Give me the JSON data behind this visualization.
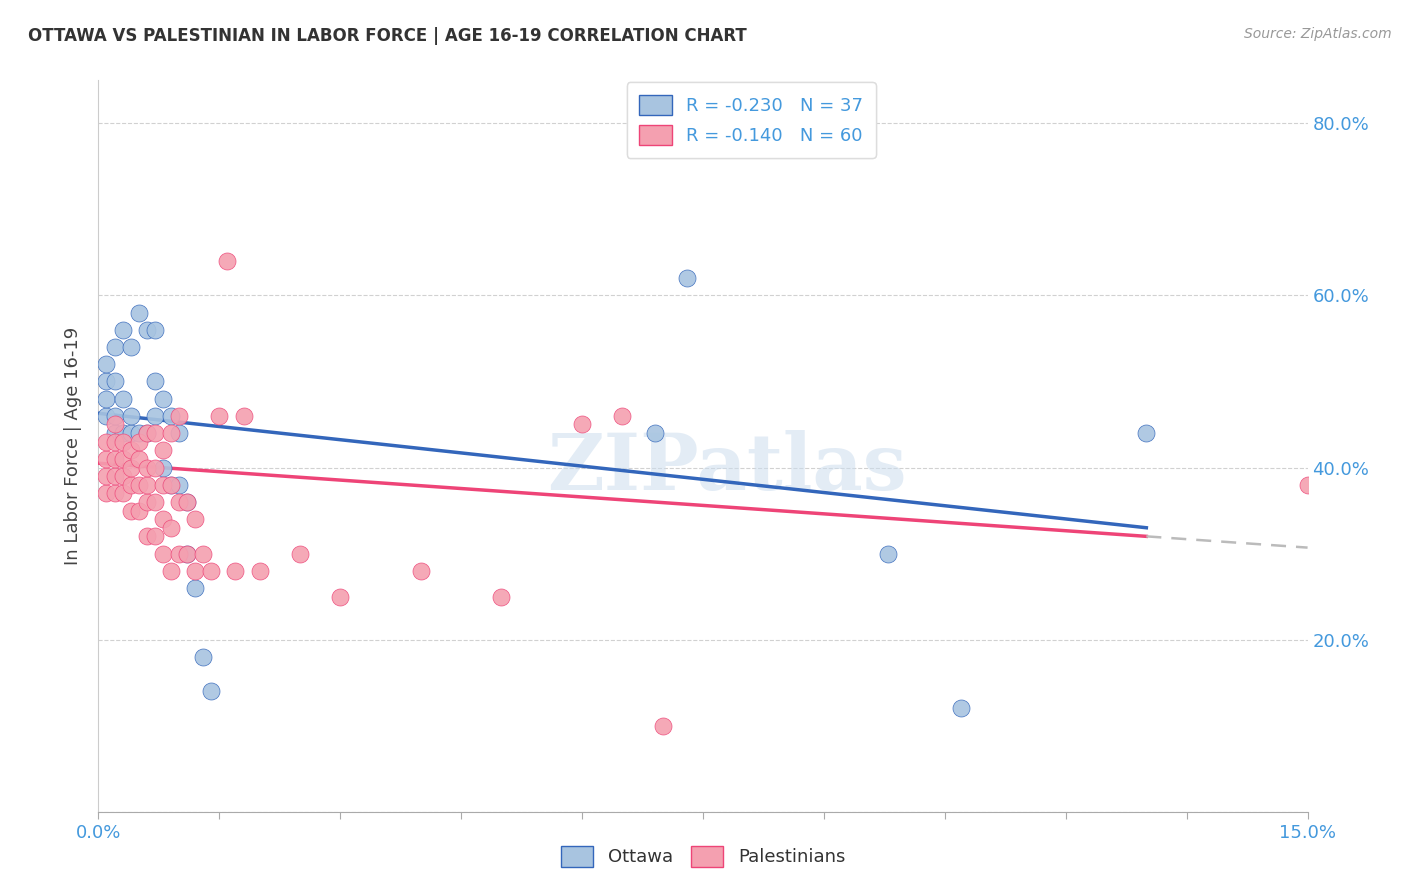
{
  "title": "OTTAWA VS PALESTINIAN IN LABOR FORCE | AGE 16-19 CORRELATION CHART",
  "source": "Source: ZipAtlas.com",
  "xlim": [
    0.0,
    0.15
  ],
  "ylim": [
    0.0,
    0.85
  ],
  "ylabel": "In Labor Force | Age 16-19",
  "watermark": "ZIPatlas",
  "legend_ottawa": "Ottawa",
  "legend_palestinians": "Palestinians",
  "R_ottawa": -0.23,
  "N_ottawa": 37,
  "R_palestinians": -0.14,
  "N_palestinians": 60,
  "ottawa_color": "#A8C4E0",
  "palestinian_color": "#F4A0B0",
  "trend_ottawa_color": "#3366BB",
  "trend_palestinian_color": "#EE4477",
  "tick_label_color": "#4499DD",
  "title_color": "#333333",
  "source_color": "#999999",
  "ottawa_x": [
    0.001,
    0.001,
    0.001,
    0.001,
    0.002,
    0.002,
    0.002,
    0.002,
    0.003,
    0.003,
    0.003,
    0.004,
    0.004,
    0.004,
    0.005,
    0.005,
    0.006,
    0.006,
    0.007,
    0.007,
    0.007,
    0.008,
    0.008,
    0.009,
    0.009,
    0.01,
    0.01,
    0.011,
    0.011,
    0.012,
    0.013,
    0.014,
    0.069,
    0.073,
    0.098,
    0.107,
    0.13
  ],
  "ottawa_y": [
    0.46,
    0.48,
    0.5,
    0.52,
    0.44,
    0.46,
    0.5,
    0.54,
    0.44,
    0.48,
    0.56,
    0.44,
    0.46,
    0.54,
    0.44,
    0.58,
    0.44,
    0.56,
    0.46,
    0.5,
    0.56,
    0.4,
    0.48,
    0.38,
    0.46,
    0.38,
    0.44,
    0.3,
    0.36,
    0.26,
    0.18,
    0.14,
    0.44,
    0.62,
    0.3,
    0.12,
    0.44
  ],
  "palestinian_x": [
    0.001,
    0.001,
    0.001,
    0.001,
    0.002,
    0.002,
    0.002,
    0.002,
    0.002,
    0.003,
    0.003,
    0.003,
    0.003,
    0.004,
    0.004,
    0.004,
    0.004,
    0.005,
    0.005,
    0.005,
    0.005,
    0.006,
    0.006,
    0.006,
    0.006,
    0.006,
    0.007,
    0.007,
    0.007,
    0.007,
    0.008,
    0.008,
    0.008,
    0.008,
    0.009,
    0.009,
    0.009,
    0.009,
    0.01,
    0.01,
    0.01,
    0.011,
    0.011,
    0.012,
    0.012,
    0.013,
    0.014,
    0.015,
    0.016,
    0.017,
    0.018,
    0.02,
    0.025,
    0.03,
    0.04,
    0.05,
    0.06,
    0.065,
    0.07,
    0.15
  ],
  "palestinian_y": [
    0.37,
    0.39,
    0.41,
    0.43,
    0.37,
    0.39,
    0.41,
    0.43,
    0.45,
    0.37,
    0.39,
    0.41,
    0.43,
    0.35,
    0.38,
    0.4,
    0.42,
    0.35,
    0.38,
    0.41,
    0.43,
    0.32,
    0.36,
    0.38,
    0.4,
    0.44,
    0.32,
    0.36,
    0.4,
    0.44,
    0.3,
    0.34,
    0.38,
    0.42,
    0.28,
    0.33,
    0.38,
    0.44,
    0.3,
    0.36,
    0.46,
    0.3,
    0.36,
    0.28,
    0.34,
    0.3,
    0.28,
    0.46,
    0.64,
    0.28,
    0.46,
    0.28,
    0.3,
    0.25,
    0.28,
    0.25,
    0.45,
    0.46,
    0.1,
    0.38
  ],
  "trend_blue_x0": 0.0,
  "trend_blue_y0": 0.463,
  "trend_blue_x1": 0.13,
  "trend_blue_y1": 0.33,
  "trend_pink_x0": 0.0,
  "trend_pink_y0": 0.405,
  "trend_pink_x1": 0.13,
  "trend_pink_y1": 0.32,
  "trend_pink_dash_x0": 0.13,
  "trend_pink_dash_x1": 0.15,
  "grid_color": "#CCCCCC",
  "spine_color": "#AAAAAA"
}
